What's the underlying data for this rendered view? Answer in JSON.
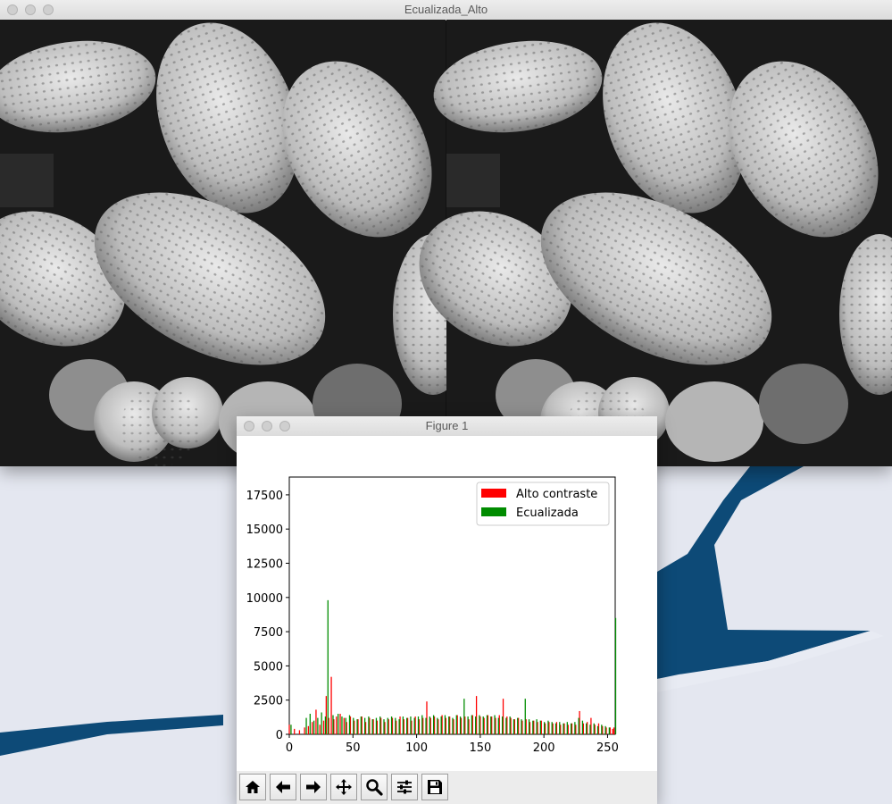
{
  "image_window": {
    "title": "Ecualizada_Alto"
  },
  "figure_window": {
    "title": "Figure 1",
    "toolbar": {
      "buttons": [
        "home-icon",
        "back-arrow-icon",
        "forward-arrow-icon",
        "pan-move-icon",
        "zoom-magnifier-icon",
        "configure-subplots-icon",
        "save-floppy-icon"
      ]
    }
  },
  "colors": {
    "alto_contraste": "#ff0000",
    "ecualizada": "#008c00",
    "water": "#0d4a77",
    "snow": "#eceef5"
  },
  "chart_data": {
    "type": "bar",
    "title": "",
    "xlabel": "",
    "ylabel": "",
    "xlim": [
      0,
      256
    ],
    "ylim": [
      0,
      18800
    ],
    "xticks": [
      0,
      50,
      100,
      150,
      200,
      250
    ],
    "yticks": [
      0,
      2500,
      5000,
      7500,
      10000,
      12500,
      15000,
      17500
    ],
    "legend_position": "top-right",
    "series": [
      {
        "name": "Alto contraste",
        "color": "#ff0000",
        "points": [
          [
            0,
            700
          ],
          [
            4,
            400
          ],
          [
            8,
            300
          ],
          [
            12,
            500
          ],
          [
            15,
            600
          ],
          [
            18,
            900
          ],
          [
            21,
            1800
          ],
          [
            24,
            700
          ],
          [
            27,
            1000
          ],
          [
            29,
            2800
          ],
          [
            31,
            1200
          ],
          [
            33,
            4200
          ],
          [
            35,
            1100
          ],
          [
            37,
            1300
          ],
          [
            40,
            1500
          ],
          [
            43,
            1200
          ],
          [
            45,
            900
          ],
          [
            48,
            1300
          ],
          [
            51,
            1000
          ],
          [
            54,
            1100
          ],
          [
            57,
            1300
          ],
          [
            60,
            900
          ],
          [
            63,
            1200
          ],
          [
            66,
            1100
          ],
          [
            69,
            1000
          ],
          [
            72,
            1200
          ],
          [
            75,
            900
          ],
          [
            78,
            1100
          ],
          [
            81,
            1200
          ],
          [
            84,
            1000
          ],
          [
            87,
            1300
          ],
          [
            90,
            1100
          ],
          [
            93,
            1200
          ],
          [
            96,
            1000
          ],
          [
            99,
            1300
          ],
          [
            102,
            1100
          ],
          [
            105,
            1200
          ],
          [
            108,
            2400
          ],
          [
            111,
            1200
          ],
          [
            114,
            1300
          ],
          [
            117,
            1100
          ],
          [
            120,
            1400
          ],
          [
            123,
            1200
          ],
          [
            126,
            1300
          ],
          [
            129,
            1100
          ],
          [
            132,
            1400
          ],
          [
            135,
            1200
          ],
          [
            138,
            1300
          ],
          [
            141,
            1100
          ],
          [
            144,
            1400
          ],
          [
            147,
            2800
          ],
          [
            150,
            1300
          ],
          [
            153,
            1200
          ],
          [
            156,
            1400
          ],
          [
            159,
            1300
          ],
          [
            162,
            1200
          ],
          [
            165,
            1400
          ],
          [
            168,
            2600
          ],
          [
            171,
            1300
          ],
          [
            174,
            1200
          ],
          [
            177,
            1100
          ],
          [
            180,
            1200
          ],
          [
            183,
            1000
          ],
          [
            186,
            1100
          ],
          [
            189,
            900
          ],
          [
            192,
            1000
          ],
          [
            195,
            900
          ],
          [
            198,
            1000
          ],
          [
            201,
            800
          ],
          [
            204,
            900
          ],
          [
            207,
            800
          ],
          [
            210,
            900
          ],
          [
            213,
            700
          ],
          [
            216,
            800
          ],
          [
            219,
            700
          ],
          [
            222,
            800
          ],
          [
            225,
            700
          ],
          [
            228,
            1700
          ],
          [
            231,
            800
          ],
          [
            234,
            900
          ],
          [
            237,
            1200
          ],
          [
            240,
            700
          ],
          [
            243,
            800
          ],
          [
            246,
            600
          ],
          [
            249,
            500
          ],
          [
            252,
            500
          ],
          [
            254,
            400
          ],
          [
            255,
            500
          ]
        ]
      },
      {
        "name": "Ecualizada",
        "color": "#008c00",
        "points": [
          [
            1,
            700
          ],
          [
            13,
            1200
          ],
          [
            16,
            1500
          ],
          [
            19,
            1000
          ],
          [
            22,
            1200
          ],
          [
            25,
            1600
          ],
          [
            28,
            1300
          ],
          [
            30,
            9800
          ],
          [
            34,
            1400
          ],
          [
            38,
            1500
          ],
          [
            41,
            1300
          ],
          [
            44,
            1200
          ],
          [
            47,
            1400
          ],
          [
            50,
            1200
          ],
          [
            53,
            1100
          ],
          [
            56,
            1300
          ],
          [
            59,
            1200
          ],
          [
            62,
            1300
          ],
          [
            65,
            1100
          ],
          [
            68,
            1200
          ],
          [
            71,
            1300
          ],
          [
            74,
            1100
          ],
          [
            77,
            1200
          ],
          [
            80,
            1300
          ],
          [
            83,
            1200
          ],
          [
            86,
            1100
          ],
          [
            89,
            1300
          ],
          [
            92,
            1200
          ],
          [
            95,
            1300
          ],
          [
            98,
            1200
          ],
          [
            101,
            1300
          ],
          [
            104,
            1400
          ],
          [
            107,
            1200
          ],
          [
            110,
            1300
          ],
          [
            113,
            1400
          ],
          [
            116,
            1200
          ],
          [
            119,
            1300
          ],
          [
            122,
            1400
          ],
          [
            125,
            1300
          ],
          [
            128,
            1200
          ],
          [
            131,
            1400
          ],
          [
            134,
            1300
          ],
          [
            137,
            2600
          ],
          [
            140,
            1300
          ],
          [
            143,
            1400
          ],
          [
            146,
            1300
          ],
          [
            149,
            1400
          ],
          [
            152,
            1300
          ],
          [
            155,
            1400
          ],
          [
            158,
            1300
          ],
          [
            161,
            1400
          ],
          [
            164,
            1200
          ],
          [
            167,
            1300
          ],
          [
            170,
            1200
          ],
          [
            173,
            1300
          ],
          [
            176,
            1100
          ],
          [
            179,
            1200
          ],
          [
            182,
            1100
          ],
          [
            185,
            2600
          ],
          [
            188,
            1100
          ],
          [
            191,
            1000
          ],
          [
            194,
            1100
          ],
          [
            197,
            1000
          ],
          [
            200,
            900
          ],
          [
            203,
            1000
          ],
          [
            206,
            900
          ],
          [
            209,
            800
          ],
          [
            212,
            900
          ],
          [
            215,
            800
          ],
          [
            218,
            900
          ],
          [
            221,
            800
          ],
          [
            224,
            900
          ],
          [
            227,
            1200
          ],
          [
            230,
            1000
          ],
          [
            233,
            800
          ],
          [
            236,
            700
          ],
          [
            239,
            800
          ],
          [
            242,
            600
          ],
          [
            245,
            700
          ],
          [
            248,
            600
          ],
          [
            251,
            500
          ],
          [
            256,
            8500
          ]
        ]
      }
    ]
  }
}
